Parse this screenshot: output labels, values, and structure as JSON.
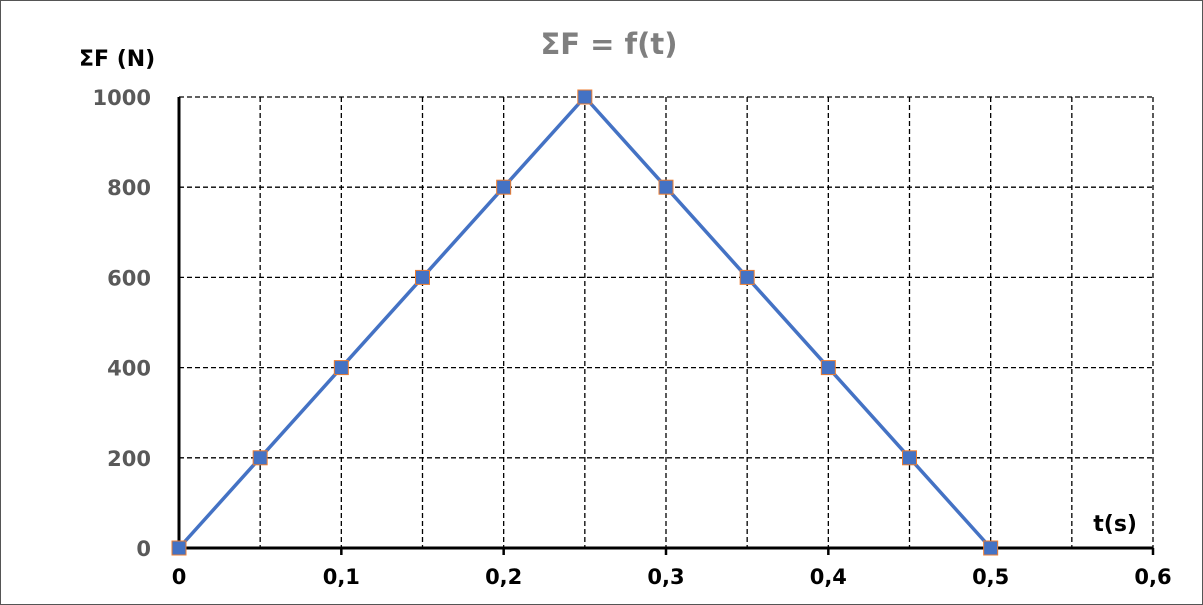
{
  "chart_data": {
    "type": "line",
    "title": "ΣF = f(t)",
    "xlabel": "t(s)",
    "ylabel": "ΣF (N)",
    "x": [
      0,
      0.05,
      0.1,
      0.15,
      0.2,
      0.25,
      0.3,
      0.35,
      0.4,
      0.45,
      0.5
    ],
    "series": [
      {
        "values": [
          0,
          200,
          400,
          600,
          800,
          1000,
          800,
          600,
          400,
          200,
          0
        ]
      }
    ],
    "xlim": [
      0,
      0.6
    ],
    "ylim": [
      0,
      1000
    ],
    "xticks": [
      0,
      0.1,
      0.2,
      0.3,
      0.4,
      0.5,
      0.6
    ],
    "xtick_labels": [
      "0",
      "0,1",
      "0,2",
      "0,3",
      "0,4",
      "0,5",
      "0,6"
    ],
    "yticks": [
      0,
      200,
      400,
      600,
      800,
      1000
    ],
    "ytick_labels": [
      "0",
      "200",
      "400",
      "600",
      "800",
      "1000"
    ],
    "grid": true,
    "grid_style": "dashed",
    "minor_x_grid_step": 0.05,
    "legend": "none",
    "colors": {
      "series": "#4472c4",
      "marker_edge": "#ed7d31",
      "grid": "#000000",
      "axis": "#000000",
      "x_tick_text": "#000000",
      "y_tick_text": "#595959",
      "title_text": "#7f7f7f"
    }
  }
}
